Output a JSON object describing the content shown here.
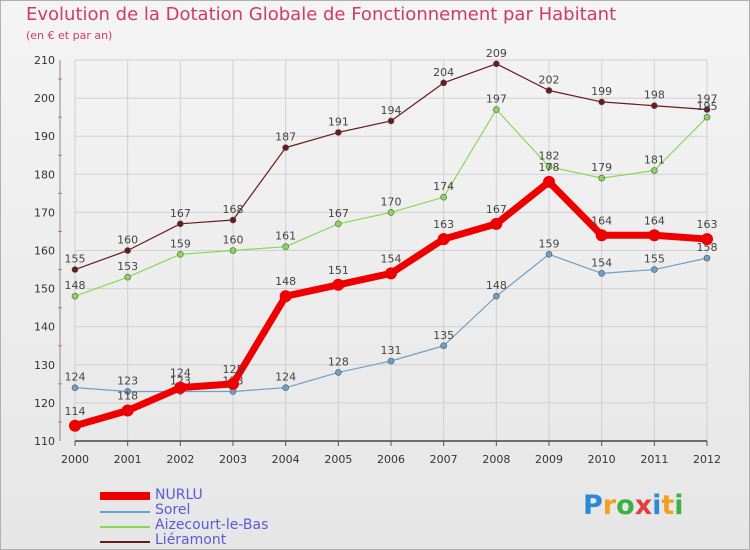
{
  "title": "Evolution de la Dotation Globale de Fonctionnement par Habitant",
  "subtitle": "(en € et par an)",
  "logo": {
    "letters": [
      "P",
      "r",
      "o",
      "x",
      "i",
      "t",
      "i"
    ],
    "colors": [
      "#2a8ad8",
      "#f0a020",
      "#3cb040",
      "#e04040",
      "#2a8ad8",
      "#f0a020",
      "#3cb040"
    ]
  },
  "chart_data": {
    "type": "line",
    "title": "Evolution de la Dotation Globale de Fonctionnement par Habitant",
    "ylabel": "(en € et par an)",
    "x": [
      "2000",
      "2001",
      "2002",
      "2003",
      "2004",
      "2005",
      "2006",
      "2007",
      "2008",
      "2009",
      "2010",
      "2011",
      "2012"
    ],
    "ylim": [
      110,
      210
    ],
    "yticks": [
      "110",
      "120",
      "130",
      "140",
      "150",
      "160",
      "170",
      "180",
      "190",
      "200",
      "210"
    ],
    "grid": true,
    "legend_position": "bottom-left",
    "series": [
      {
        "name": "Liéramont",
        "color": "#6b1a1a",
        "values": [
          155,
          160,
          167,
          168,
          187,
          191,
          194,
          204,
          209,
          202,
          199,
          198,
          197
        ]
      },
      {
        "name": "Aizecourt-le-Bas",
        "color": "#88d858",
        "values": [
          148,
          153,
          159,
          160,
          161,
          167,
          170,
          174,
          197,
          182,
          179,
          181,
          195
        ]
      },
      {
        "name": "Sorel",
        "color": "#6aa0cc",
        "values": [
          124,
          123,
          123,
          123,
          124,
          128,
          131,
          135,
          148,
          159,
          154,
          155,
          158
        ]
      },
      {
        "name": "NURLU",
        "color": "#ee0000",
        "values": [
          114,
          118,
          124,
          125,
          148,
          151,
          154,
          163,
          167,
          178,
          164,
          164,
          163
        ]
      }
    ],
    "legend": [
      "NURLU",
      "Sorel",
      "Aizecourt-le-Bas",
      "Liéramont"
    ]
  }
}
